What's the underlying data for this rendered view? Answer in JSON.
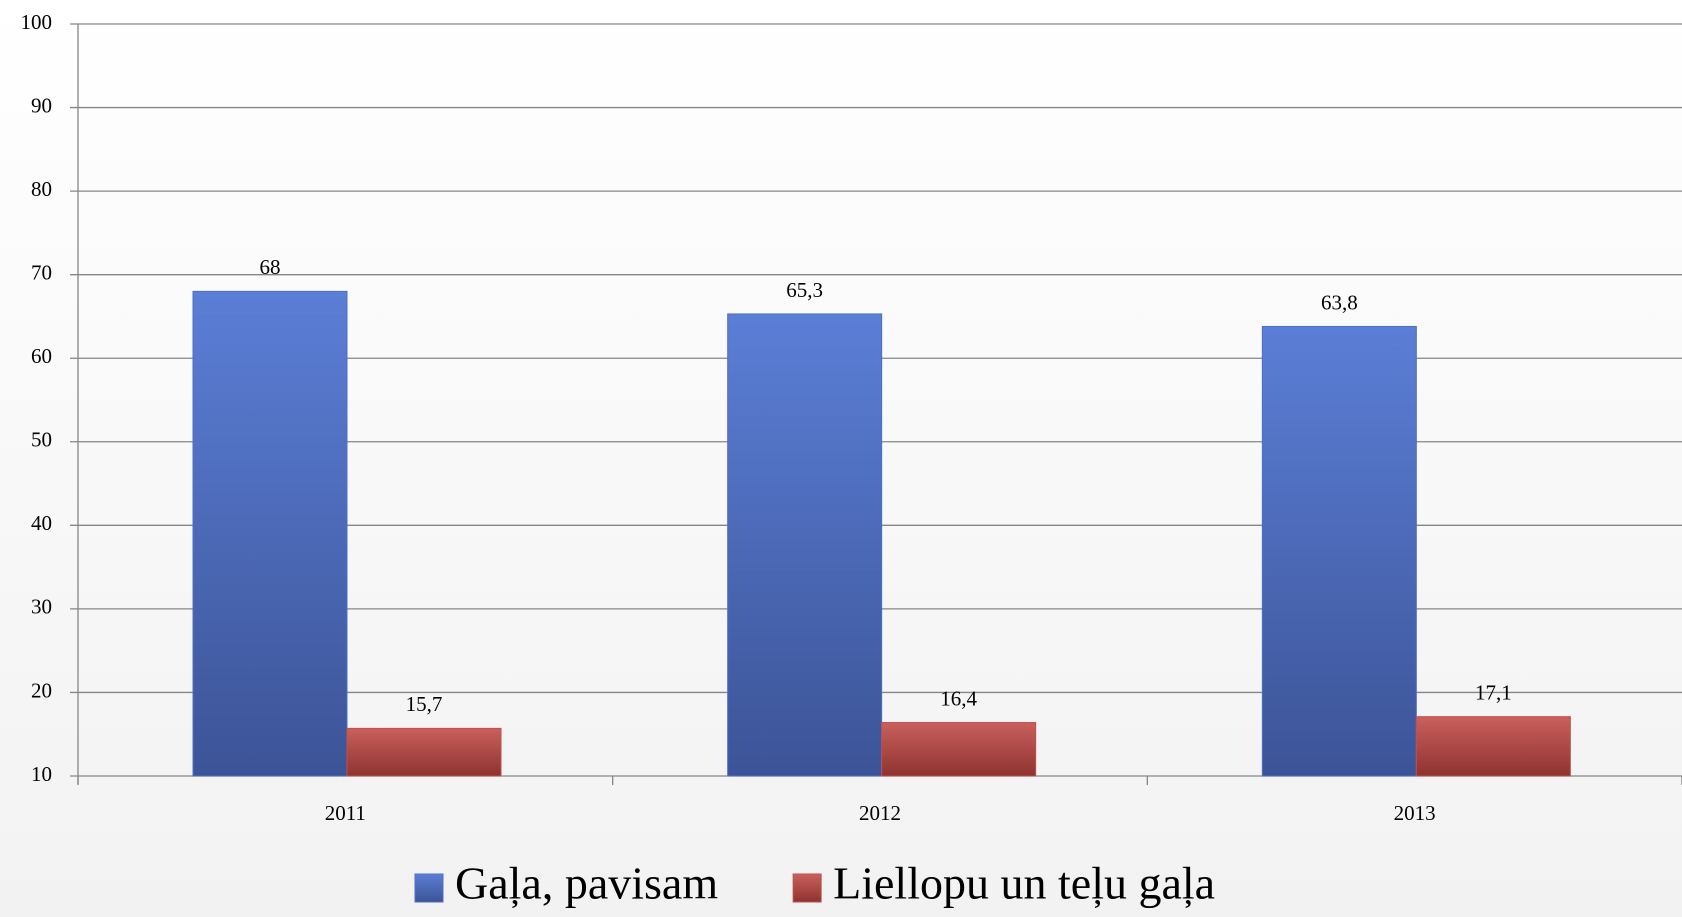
{
  "chart_data": {
    "type": "bar",
    "categories": [
      "2011",
      "2012",
      "2013"
    ],
    "series": [
      {
        "name": "Gaļa, pavisam",
        "color": "#4f6fc6",
        "values": [
          68,
          65.3,
          63.8
        ],
        "value_labels": [
          "68",
          "65,3",
          "63,8"
        ]
      },
      {
        "name": "Liellopu un teļu gaļa",
        "color": "#c0504d",
        "values": [
          15.7,
          16.4,
          17.1
        ],
        "value_labels": [
          "15,7",
          "16,4",
          "17,1"
        ]
      }
    ],
    "ylim": [
      10,
      100
    ],
    "yticks": [
      10,
      20,
      30,
      40,
      50,
      60,
      70,
      80,
      90,
      100
    ],
    "grid": true,
    "legend": "bottom"
  }
}
